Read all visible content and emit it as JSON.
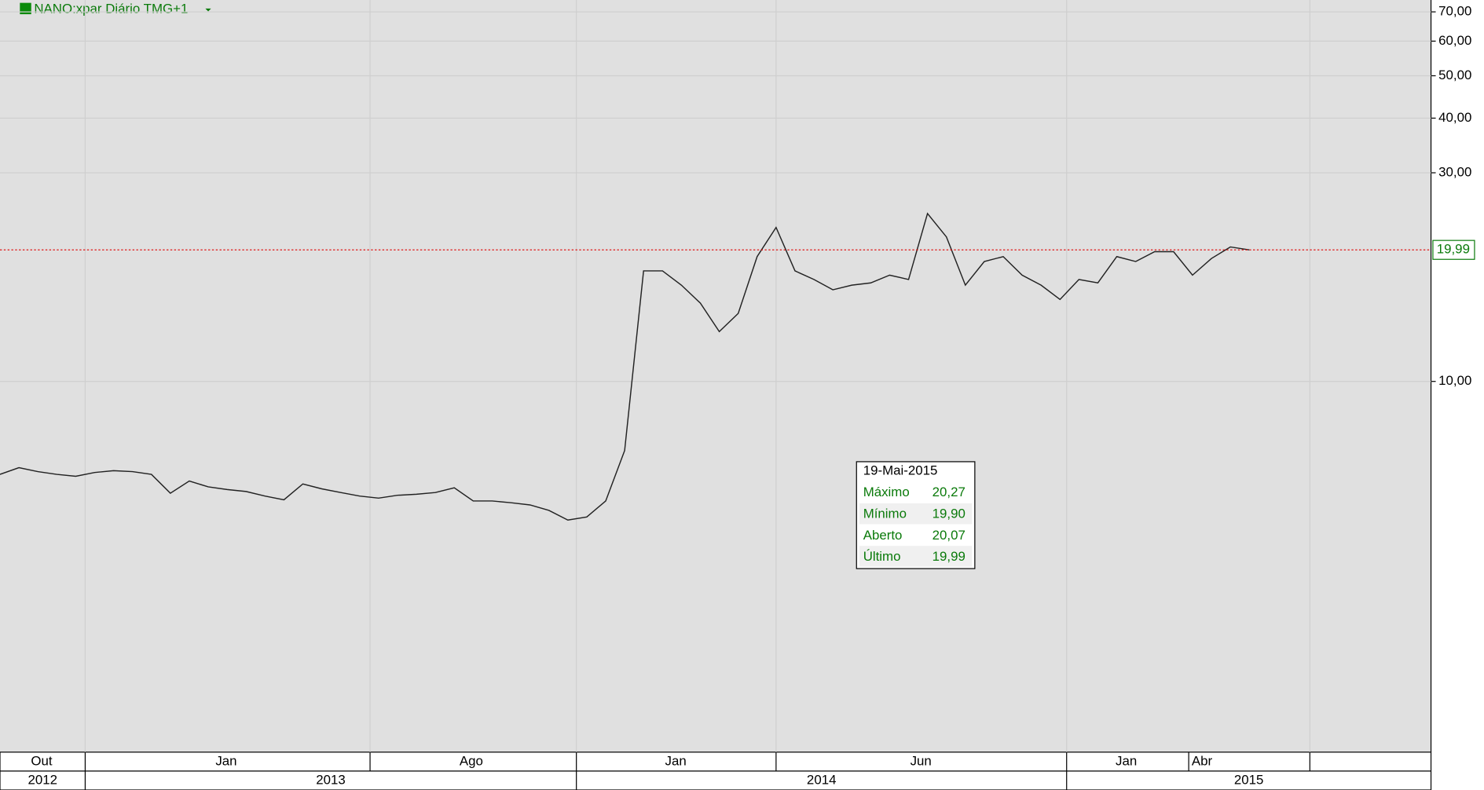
{
  "chart_data": {
    "type": "line",
    "title": "NANO:xpar Diário TMG+1",
    "log_scale": true,
    "grid": true,
    "ylim": [
      1.42,
      74.5
    ],
    "yticks": [
      {
        "value": 10,
        "label": "10,00"
      },
      {
        "value": 30,
        "label": "30,00"
      },
      {
        "value": 40,
        "label": "40,00"
      },
      {
        "value": 50,
        "label": "50,00"
      },
      {
        "value": 60,
        "label": "60,00"
      },
      {
        "value": 70,
        "label": "70,00"
      }
    ],
    "series": [
      {
        "color": "#222222",
        "values": [
          6.13,
          6.35,
          6.22,
          6.13,
          6.07,
          6.19,
          6.25,
          6.22,
          6.13,
          5.55,
          5.92,
          5.74,
          5.66,
          5.6,
          5.47,
          5.36,
          5.83,
          5.68,
          5.57,
          5.47,
          5.41,
          5.49,
          5.52,
          5.57,
          5.71,
          5.33,
          5.33,
          5.28,
          5.22,
          5.07,
          4.82,
          4.9,
          5.33,
          6.95,
          17.9,
          17.9,
          16.6,
          15.1,
          13.0,
          14.3,
          19.3,
          22.5,
          17.9,
          17.1,
          16.2,
          16.6,
          16.8,
          17.5,
          17.1,
          24.2,
          21.4,
          16.6,
          18.8,
          19.3,
          17.5,
          16.6,
          15.4,
          17.1,
          16.8,
          19.3,
          18.8,
          19.8,
          19.8,
          17.5,
          19.1,
          20.3,
          19.99
        ]
      }
    ],
    "last_price": {
      "value": 19.99,
      "label": "19,99",
      "color": "#e00000"
    },
    "months": [
      "Out",
      "Jan",
      "Ago",
      "Jan",
      "Jun",
      "Jan",
      "Abr"
    ],
    "years": [
      "2012",
      "2013",
      "2014",
      "2015"
    ],
    "tooltip": {
      "date": "19-Mai-2015",
      "rows": [
        {
          "label": "Máximo",
          "value": "20,27"
        },
        {
          "label": "Mínimo",
          "value": "19,90"
        },
        {
          "label": "Aberto",
          "value": "20,07"
        },
        {
          "label": "Último",
          "value": "19,99"
        }
      ]
    }
  }
}
